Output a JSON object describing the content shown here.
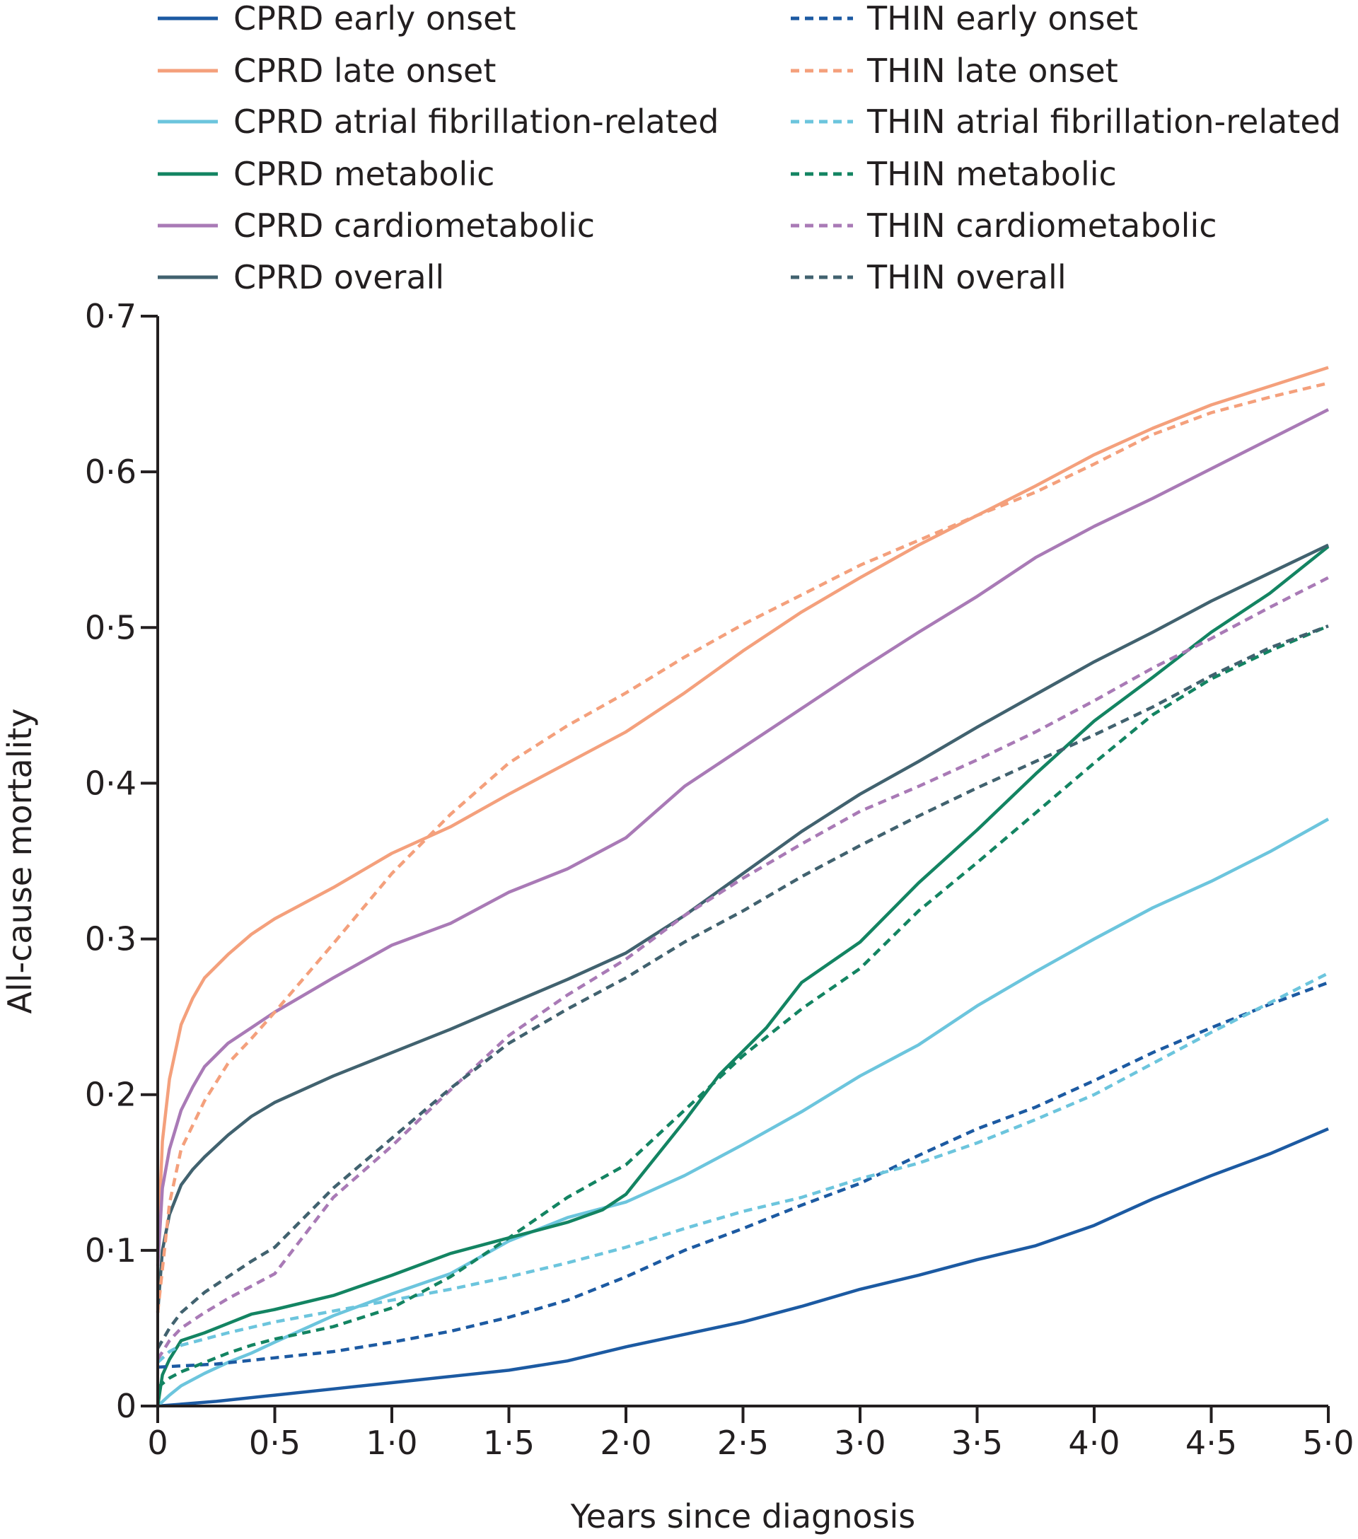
{
  "chart_data": {
    "type": "line",
    "xlabel": "Years since diagnosis",
    "ylabel": "All-cause mortality",
    "xlim": [
      0,
      5
    ],
    "ylim": [
      0,
      0.7
    ],
    "grid": false,
    "legend_position": "top",
    "x_ticks": [
      0,
      0.5,
      1.0,
      1.5,
      2.0,
      2.5,
      3.0,
      3.5,
      4.0,
      4.5,
      5.0
    ],
    "x_tick_labels": [
      "0",
      "0·5",
      "1·0",
      "1·5",
      "2·0",
      "2·5",
      "3·0",
      "3·5",
      "4·0",
      "4·5",
      "5·0"
    ],
    "y_ticks": [
      0,
      0.1,
      0.2,
      0.3,
      0.4,
      0.5,
      0.6,
      0.7
    ],
    "y_tick_labels": [
      "0",
      "0·1",
      "0·2",
      "0·3",
      "0·4",
      "0·5",
      "0·6",
      "0·7"
    ],
    "series": [
      {
        "name": "CPRD early onset",
        "color": "#1c5aa2",
        "dash": "solid",
        "x": [
          0,
          0.25,
          0.5,
          0.75,
          1.0,
          1.25,
          1.5,
          1.75,
          2.0,
          2.25,
          2.5,
          2.75,
          3.0,
          3.25,
          3.5,
          3.75,
          4.0,
          4.25,
          4.5,
          4.75,
          5.0
        ],
        "y": [
          0,
          0.003,
          0.007,
          0.011,
          0.015,
          0.019,
          0.023,
          0.029,
          0.038,
          0.046,
          0.054,
          0.064,
          0.075,
          0.084,
          0.094,
          0.103,
          0.116,
          0.133,
          0.148,
          0.162,
          0.178
        ]
      },
      {
        "name": "CPRD late onset",
        "color": "#f4a07c",
        "dash": "solid",
        "x": [
          0,
          0.02,
          0.05,
          0.1,
          0.15,
          0.2,
          0.3,
          0.4,
          0.5,
          0.75,
          1.0,
          1.25,
          1.5,
          1.75,
          2.0,
          2.25,
          2.5,
          2.75,
          3.0,
          3.25,
          3.5,
          3.75,
          4.0,
          4.25,
          4.5,
          4.75,
          5.0
        ],
        "y": [
          0.1,
          0.17,
          0.21,
          0.245,
          0.262,
          0.275,
          0.29,
          0.303,
          0.313,
          0.333,
          0.355,
          0.372,
          0.393,
          0.413,
          0.433,
          0.458,
          0.485,
          0.51,
          0.532,
          0.553,
          0.572,
          0.591,
          0.611,
          0.628,
          0.643,
          0.655,
          0.667
        ]
      },
      {
        "name": "CPRD atrial fibrillation-related",
        "color": "#6cc5dd",
        "dash": "solid",
        "x": [
          0,
          0.05,
          0.1,
          0.2,
          0.3,
          0.4,
          0.5,
          0.75,
          1.0,
          1.25,
          1.5,
          1.75,
          2.0,
          2.25,
          2.5,
          2.75,
          3.0,
          3.25,
          3.5,
          3.75,
          4.0,
          4.25,
          4.5,
          4.75,
          5.0
        ],
        "y": [
          0,
          0.007,
          0.013,
          0.021,
          0.028,
          0.034,
          0.041,
          0.058,
          0.072,
          0.085,
          0.106,
          0.121,
          0.131,
          0.148,
          0.168,
          0.189,
          0.212,
          0.232,
          0.257,
          0.279,
          0.3,
          0.32,
          0.337,
          0.356,
          0.377
        ]
      },
      {
        "name": "CPRD metabolic",
        "color": "#138462",
        "dash": "solid",
        "x": [
          0,
          0.02,
          0.05,
          0.1,
          0.2,
          0.3,
          0.4,
          0.5,
          0.75,
          1.0,
          1.25,
          1.5,
          1.75,
          1.9,
          2.0,
          2.25,
          2.4,
          2.6,
          2.75,
          3.0,
          3.25,
          3.5,
          3.75,
          4.0,
          4.25,
          4.5,
          4.75,
          5.0
        ],
        "y": [
          0,
          0.02,
          0.03,
          0.042,
          0.047,
          0.053,
          0.059,
          0.062,
          0.071,
          0.084,
          0.098,
          0.108,
          0.118,
          0.126,
          0.136,
          0.183,
          0.213,
          0.243,
          0.272,
          0.298,
          0.336,
          0.37,
          0.406,
          0.44,
          0.468,
          0.497,
          0.522,
          0.552
        ]
      },
      {
        "name": "CPRD cardiometabolic",
        "color": "#a97ab6",
        "dash": "solid",
        "x": [
          0,
          0.02,
          0.05,
          0.1,
          0.15,
          0.2,
          0.3,
          0.4,
          0.5,
          0.75,
          1.0,
          1.25,
          1.5,
          1.75,
          2.0,
          2.25,
          2.5,
          2.75,
          3.0,
          3.25,
          3.5,
          3.75,
          4.0,
          4.25,
          4.5,
          4.75,
          5.0
        ],
        "y": [
          0.09,
          0.14,
          0.165,
          0.19,
          0.205,
          0.218,
          0.233,
          0.243,
          0.253,
          0.275,
          0.296,
          0.31,
          0.33,
          0.345,
          0.365,
          0.398,
          0.423,
          0.448,
          0.473,
          0.497,
          0.52,
          0.545,
          0.565,
          0.583,
          0.602,
          0.621,
          0.64
        ]
      },
      {
        "name": "CPRD overall",
        "color": "#41626f",
        "dash": "solid",
        "x": [
          0,
          0.02,
          0.05,
          0.1,
          0.15,
          0.2,
          0.3,
          0.4,
          0.5,
          0.75,
          1.0,
          1.25,
          1.5,
          1.75,
          2.0,
          2.25,
          2.5,
          2.75,
          3.0,
          3.25,
          3.5,
          3.75,
          4.0,
          4.25,
          4.5,
          4.75,
          5.0
        ],
        "y": [
          0.06,
          0.1,
          0.123,
          0.142,
          0.152,
          0.16,
          0.174,
          0.186,
          0.195,
          0.212,
          0.227,
          0.242,
          0.258,
          0.274,
          0.291,
          0.315,
          0.342,
          0.369,
          0.393,
          0.414,
          0.436,
          0.457,
          0.478,
          0.497,
          0.517,
          0.535,
          0.553
        ]
      },
      {
        "name": "THIN early onset",
        "color": "#1c5aa2",
        "dash": "dashed",
        "x": [
          0,
          0.25,
          0.5,
          0.75,
          1.0,
          1.25,
          1.5,
          1.75,
          2.0,
          2.25,
          2.5,
          2.75,
          3.0,
          3.25,
          3.5,
          3.75,
          4.0,
          4.25,
          4.5,
          4.75,
          5.0
        ],
        "y": [
          0.025,
          0.027,
          0.031,
          0.035,
          0.041,
          0.048,
          0.057,
          0.068,
          0.083,
          0.1,
          0.114,
          0.129,
          0.143,
          0.161,
          0.178,
          0.192,
          0.209,
          0.227,
          0.243,
          0.258,
          0.272
        ]
      },
      {
        "name": "THIN late onset",
        "color": "#f4a07c",
        "dash": "dashed",
        "x": [
          0,
          0.05,
          0.1,
          0.2,
          0.3,
          0.4,
          0.5,
          0.75,
          1.0,
          1.25,
          1.5,
          1.75,
          2.0,
          2.25,
          2.5,
          2.75,
          3.0,
          3.25,
          3.5,
          3.75,
          4.0,
          4.25,
          4.5,
          4.75,
          5.0
        ],
        "y": [
          0.06,
          0.13,
          0.165,
          0.196,
          0.22,
          0.236,
          0.253,
          0.297,
          0.342,
          0.38,
          0.413,
          0.437,
          0.458,
          0.481,
          0.502,
          0.521,
          0.54,
          0.556,
          0.572,
          0.587,
          0.605,
          0.624,
          0.638,
          0.648,
          0.657
        ]
      },
      {
        "name": "THIN atrial fibrillation-related",
        "color": "#6cc5dd",
        "dash": "dashed",
        "x": [
          0,
          0.05,
          0.1,
          0.2,
          0.3,
          0.5,
          0.75,
          1.0,
          1.25,
          1.5,
          1.75,
          2.0,
          2.25,
          2.5,
          2.75,
          3.0,
          3.25,
          3.5,
          3.75,
          4.0,
          4.25,
          4.5,
          4.75,
          5.0
        ],
        "y": [
          0.028,
          0.035,
          0.039,
          0.043,
          0.047,
          0.054,
          0.061,
          0.068,
          0.075,
          0.083,
          0.092,
          0.102,
          0.114,
          0.125,
          0.134,
          0.146,
          0.156,
          0.169,
          0.184,
          0.2,
          0.22,
          0.24,
          0.259,
          0.278
        ]
      },
      {
        "name": "THIN metabolic",
        "color": "#138462",
        "dash": "dashed",
        "x": [
          0,
          0.05,
          0.1,
          0.2,
          0.3,
          0.4,
          0.5,
          0.75,
          1.0,
          1.25,
          1.5,
          1.75,
          2.0,
          2.25,
          2.5,
          2.75,
          3.0,
          3.25,
          3.5,
          3.75,
          4.0,
          4.25,
          4.5,
          4.75,
          5.0
        ],
        "y": [
          0.012,
          0.018,
          0.022,
          0.028,
          0.034,
          0.039,
          0.043,
          0.051,
          0.063,
          0.083,
          0.108,
          0.134,
          0.155,
          0.19,
          0.225,
          0.255,
          0.281,
          0.318,
          0.349,
          0.381,
          0.413,
          0.444,
          0.467,
          0.485,
          0.501
        ]
      },
      {
        "name": "THIN cardiometabolic",
        "color": "#a97ab6",
        "dash": "dashed",
        "x": [
          0,
          0.05,
          0.1,
          0.2,
          0.3,
          0.4,
          0.5,
          0.75,
          1.0,
          1.25,
          1.5,
          1.75,
          2.0,
          2.25,
          2.5,
          2.75,
          3.0,
          3.25,
          3.5,
          3.75,
          4.0,
          4.25,
          4.5,
          4.75,
          5.0
        ],
        "y": [
          0.03,
          0.042,
          0.05,
          0.06,
          0.069,
          0.077,
          0.085,
          0.134,
          0.167,
          0.203,
          0.238,
          0.264,
          0.287,
          0.315,
          0.339,
          0.361,
          0.382,
          0.398,
          0.415,
          0.433,
          0.453,
          0.474,
          0.493,
          0.513,
          0.532
        ]
      },
      {
        "name": "THIN overall",
        "color": "#41626f",
        "dash": "dashed",
        "x": [
          0,
          0.05,
          0.1,
          0.2,
          0.3,
          0.4,
          0.5,
          0.75,
          1.0,
          1.25,
          1.5,
          1.75,
          2.0,
          2.25,
          2.5,
          2.75,
          3.0,
          3.25,
          3.5,
          3.75,
          4.0,
          4.25,
          4.5,
          4.75,
          5.0
        ],
        "y": [
          0.037,
          0.05,
          0.06,
          0.073,
          0.083,
          0.093,
          0.102,
          0.14,
          0.172,
          0.204,
          0.233,
          0.255,
          0.275,
          0.298,
          0.318,
          0.34,
          0.36,
          0.379,
          0.397,
          0.414,
          0.431,
          0.449,
          0.469,
          0.487,
          0.501
        ]
      }
    ]
  }
}
